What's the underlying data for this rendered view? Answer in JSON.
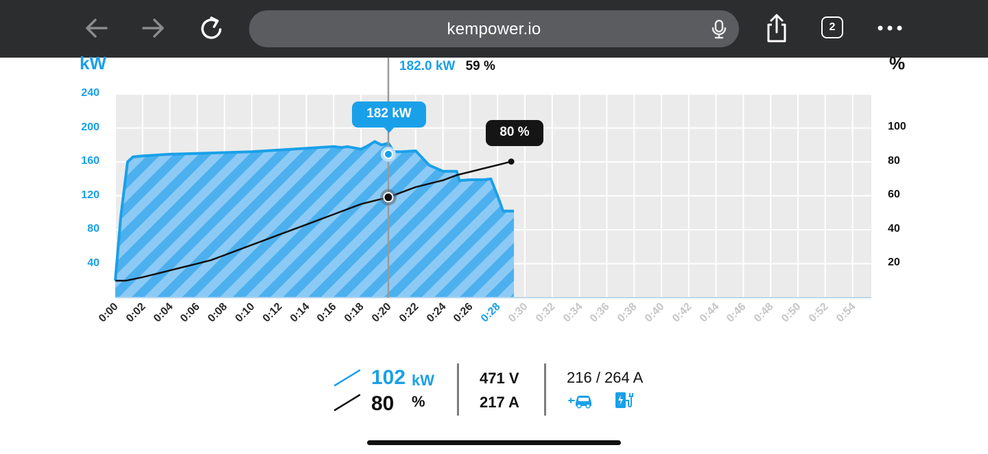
{
  "browser": {
    "url": "kempower.io",
    "tab_count": "2",
    "icons": [
      "back-arrow-icon",
      "forward-arrow-icon",
      "reload-icon",
      "microphone-icon",
      "share-icon",
      "tabs-icon",
      "more-icon"
    ]
  },
  "chart": {
    "left_unit": "kW",
    "right_unit": "%",
    "readout_kw": "182.0 kW",
    "readout_pct": "59 %",
    "bubble_kw": "182 kW",
    "bubble_pct": "80 %",
    "colors": {
      "power": "#1aa0e8",
      "soc": "#111111",
      "grid_bg": "#ebebeb"
    }
  },
  "chart_data": {
    "type": "area",
    "x_unit": "minutes",
    "x_tick_labels": [
      "0:00",
      "0:02",
      "0:04",
      "0:06",
      "0:08",
      "0:10",
      "0:12",
      "0:14",
      "0:16",
      "0:18",
      "0:20",
      "0:22",
      "0:24",
      "0:26",
      "0:28",
      "0:30",
      "0:32",
      "0:34",
      "0:36",
      "0:38",
      "0:40",
      "0:42",
      "0:44",
      "0:46",
      "0:48",
      "0:50",
      "0:52",
      "0:54"
    ],
    "xlim": [
      0,
      55
    ],
    "y_left": {
      "label": "kW",
      "ticks": [
        40,
        80,
        120,
        160,
        200,
        240
      ],
      "lim": [
        0,
        240
      ]
    },
    "y_right": {
      "label": "%",
      "ticks": [
        20,
        40,
        60,
        80,
        100
      ],
      "lim": [
        0,
        120
      ]
    },
    "series": [
      {
        "name": "kW",
        "axis": "left",
        "x": [
          0,
          0.4,
          0.9,
          1.3,
          2,
          4,
          6,
          8,
          10,
          12,
          14,
          16,
          16.6,
          17,
          18,
          18.5,
          19,
          19.5,
          20,
          20.4,
          21,
          22,
          23,
          24,
          25,
          25.2,
          26,
          27,
          27.5,
          28,
          28.4,
          29,
          29.2
        ],
        "y": [
          20,
          95,
          160,
          166,
          167,
          169,
          170,
          171,
          172,
          174,
          176,
          178,
          177,
          178,
          175,
          179,
          184,
          180,
          182,
          172,
          172,
          173,
          156,
          149,
          149,
          138,
          139,
          139,
          140,
          120,
          102,
          102,
          102
        ]
      },
      {
        "name": "%",
        "axis": "right",
        "x": [
          0,
          0.8,
          2,
          3,
          4,
          5,
          6,
          7,
          8,
          9,
          10,
          11,
          12,
          13,
          14,
          15,
          16,
          17,
          18,
          19,
          20,
          21,
          22,
          23,
          24,
          25,
          26,
          27,
          28,
          29
        ],
        "y": [
          10,
          10,
          12,
          14,
          16,
          18,
          20,
          22,
          25,
          28,
          31,
          34,
          37,
          40,
          43,
          46,
          49,
          52,
          55,
          57,
          59,
          62,
          65,
          67,
          69,
          72,
          74,
          76,
          78,
          80
        ]
      }
    ],
    "cursor": {
      "x": 20,
      "power_kw": 182.0,
      "soc_pct": 59
    },
    "current_time_label": "0:28"
  },
  "stats": {
    "power_value": "102",
    "power_unit": "kW",
    "soc_value": "80",
    "soc_unit": "%",
    "voltage": "471 V",
    "current": "217 A",
    "current_limits": "216 / 264 A",
    "icons": [
      "car-charging-icon",
      "charger-icon"
    ]
  }
}
